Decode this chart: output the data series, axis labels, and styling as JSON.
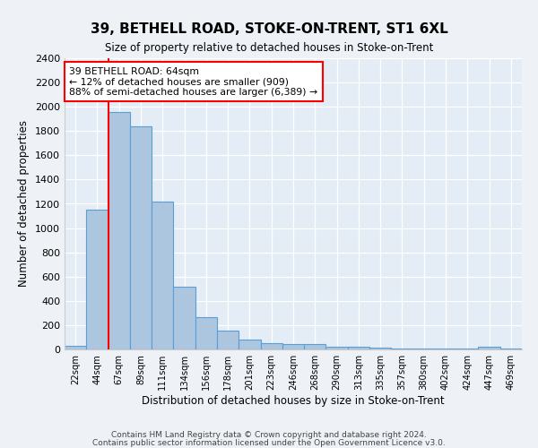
{
  "title": "39, BETHELL ROAD, STOKE-ON-TRENT, ST1 6XL",
  "subtitle": "Size of property relative to detached houses in Stoke-on-Trent",
  "xlabel": "Distribution of detached houses by size in Stoke-on-Trent",
  "ylabel": "Number of detached properties",
  "bar_color": "#adc6e0",
  "bar_edge_color": "#5a9fd4",
  "categories": [
    "22sqm",
    "44sqm",
    "67sqm",
    "89sqm",
    "111sqm",
    "134sqm",
    "156sqm",
    "178sqm",
    "201sqm",
    "223sqm",
    "246sqm",
    "268sqm",
    "290sqm",
    "313sqm",
    "335sqm",
    "357sqm",
    "380sqm",
    "402sqm",
    "424sqm",
    "447sqm",
    "469sqm"
  ],
  "values": [
    30,
    1155,
    1960,
    1840,
    1215,
    515,
    265,
    155,
    80,
    50,
    45,
    45,
    20,
    25,
    15,
    5,
    5,
    5,
    5,
    20,
    5
  ],
  "ylim": [
    0,
    2400
  ],
  "yticks": [
    0,
    200,
    400,
    600,
    800,
    1000,
    1200,
    1400,
    1600,
    1800,
    2000,
    2200,
    2400
  ],
  "annotation_line1": "39 BETHELL ROAD: 64sqm",
  "annotation_line2": "← 12% of detached houses are smaller (909)",
  "annotation_line3": "88% of semi-detached houses are larger (6,389) →",
  "vline_x": 1.5,
  "footnote1": "Contains HM Land Registry data © Crown copyright and database right 2024.",
  "footnote2": "Contains public sector information licensed under the Open Government Licence v3.0.",
  "bg_color": "#eef2f7",
  "plot_bg_color": "#e4ecf5"
}
